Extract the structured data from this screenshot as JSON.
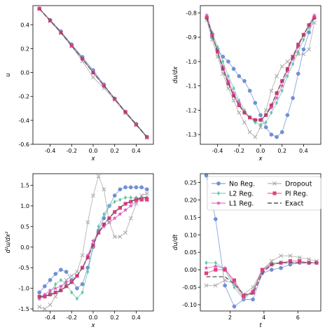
{
  "chart_data": [
    {
      "type": "line",
      "xlabel": "x",
      "ylabel": "u",
      "xlim": [
        -0.56,
        0.56
      ],
      "ylim": [
        -0.6,
        0.56
      ],
      "xticks": [
        "-0.4",
        "-0.2",
        "0.0",
        "0.2",
        "0.4"
      ],
      "xtick_values": [
        -0.4,
        -0.2,
        0.0,
        0.2,
        0.4
      ],
      "yticks": [
        "-0.6",
        "-0.4",
        "-0.2",
        "0.0",
        "0.2",
        "0.4"
      ],
      "ytick_values": [
        -0.6,
        -0.4,
        -0.2,
        0.0,
        0.2,
        0.4
      ],
      "x": [
        -0.5,
        -0.4,
        -0.3,
        -0.2,
        -0.1,
        0.0,
        0.1,
        0.2,
        0.3,
        0.4,
        0.5
      ],
      "series": [
        {
          "name": "No Reg.",
          "values": [
            0.535,
            0.44,
            0.345,
            0.235,
            0.13,
            0.02,
            -0.1,
            -0.22,
            -0.33,
            -0.43,
            -0.54
          ]
        },
        {
          "name": "L2 Reg.",
          "values": [
            0.535,
            0.435,
            0.34,
            0.23,
            0.12,
            0.005,
            -0.105,
            -0.215,
            -0.325,
            -0.43,
            -0.535
          ]
        },
        {
          "name": "L1 Reg.",
          "values": [
            0.535,
            0.435,
            0.335,
            0.225,
            0.115,
            0.0,
            -0.11,
            -0.22,
            -0.33,
            -0.435,
            -0.54
          ]
        },
        {
          "name": "Dropout",
          "values": [
            0.53,
            0.43,
            0.33,
            0.22,
            0.095,
            -0.04,
            -0.13,
            -0.23,
            -0.34,
            -0.44,
            -0.545
          ]
        },
        {
          "name": "PI Reg.",
          "values": [
            0.535,
            0.435,
            0.335,
            0.225,
            0.115,
            0.0,
            -0.11,
            -0.22,
            -0.33,
            -0.435,
            -0.54
          ]
        },
        {
          "name": "Exact",
          "values": [
            0.535,
            0.435,
            0.335,
            0.225,
            0.115,
            0.0,
            -0.11,
            -0.22,
            -0.33,
            -0.435,
            -0.54
          ]
        }
      ]
    },
    {
      "type": "line",
      "xlabel": "x",
      "ylabel": "du/dx",
      "xlim": [
        -0.56,
        0.56
      ],
      "ylim": [
        -1.34,
        -0.77
      ],
      "xticks": [
        "-0.4",
        "-0.2",
        "0.0",
        "0.2",
        "0.4"
      ],
      "xtick_values": [
        -0.4,
        -0.2,
        0.0,
        0.2,
        0.4
      ],
      "yticks": [
        "-1.3",
        "-1.2",
        "-1.1",
        "-1.0",
        "-0.9",
        "-0.8"
      ],
      "ytick_values": [
        -1.3,
        -1.2,
        -1.1,
        -1.0,
        -0.9,
        -0.8
      ],
      "x": [
        -0.5,
        -0.45,
        -0.4,
        -0.35,
        -0.3,
        -0.25,
        -0.2,
        -0.15,
        -0.1,
        -0.05,
        0.0,
        0.05,
        0.1,
        0.15,
        0.2,
        0.25,
        0.3,
        0.35,
        0.4,
        0.45,
        0.5
      ],
      "series": [
        {
          "name": "No Reg.",
          "values": [
            -0.82,
            -0.9,
            -0.95,
            -0.98,
            -1.0,
            -1.03,
            -1.06,
            -1.08,
            -1.12,
            -1.17,
            -1.22,
            -1.27,
            -1.3,
            -1.31,
            -1.29,
            -1.22,
            -1.15,
            -1.05,
            -0.95,
            -0.88,
            -0.82
          ]
        },
        {
          "name": "L2 Reg.",
          "values": [
            -0.81,
            -0.88,
            -0.94,
            -1.0,
            -1.06,
            -1.11,
            -1.16,
            -1.2,
            -1.23,
            -1.25,
            -1.26,
            -1.25,
            -1.21,
            -1.17,
            -1.12,
            -1.06,
            -1.01,
            -0.96,
            -0.91,
            -0.86,
            -0.82
          ]
        },
        {
          "name": "L1 Reg.",
          "values": [
            -0.81,
            -0.89,
            -0.96,
            -1.02,
            -1.08,
            -1.13,
            -1.17,
            -1.21,
            -1.23,
            -1.24,
            -1.24,
            -1.22,
            -1.19,
            -1.15,
            -1.1,
            -1.04,
            -0.99,
            -0.94,
            -0.89,
            -0.85,
            -0.81
          ]
        },
        {
          "name": "Dropout",
          "values": [
            -0.83,
            -0.91,
            -0.98,
            -1.05,
            -1.11,
            -1.16,
            -1.21,
            -1.25,
            -1.29,
            -1.31,
            -1.27,
            -1.2,
            -1.12,
            -1.06,
            -1.02,
            -1.0,
            -0.98,
            -0.97,
            -0.97,
            -0.95,
            -0.84
          ]
        },
        {
          "name": "PI Reg.",
          "values": [
            -0.82,
            -0.89,
            -0.96,
            -1.03,
            -1.09,
            -1.14,
            -1.18,
            -1.21,
            -1.23,
            -1.24,
            -1.24,
            -1.22,
            -1.18,
            -1.13,
            -1.08,
            -1.03,
            -0.98,
            -0.93,
            -0.89,
            -0.85,
            -0.82
          ]
        },
        {
          "name": "Exact",
          "values": [
            -0.82,
            -0.89,
            -0.96,
            -1.03,
            -1.09,
            -1.14,
            -1.18,
            -1.21,
            -1.23,
            -1.24,
            -1.24,
            -1.22,
            -1.18,
            -1.13,
            -1.08,
            -1.03,
            -0.98,
            -0.93,
            -0.89,
            -0.85,
            -0.82
          ]
        }
      ]
    },
    {
      "type": "line",
      "xlabel": "x",
      "ylabel": "d²u/dx²",
      "xlim": [
        -0.56,
        0.56
      ],
      "ylim": [
        -1.55,
        1.78
      ],
      "xticks": [
        "-0.4",
        "-0.2",
        "0.0",
        "0.2",
        "0.4"
      ],
      "xtick_values": [
        -0.4,
        -0.2,
        0.0,
        0.2,
        0.4
      ],
      "yticks": [
        "-1.5",
        "-1.0",
        "-0.5",
        "0.0",
        "0.5",
        "1.0",
        "1.5"
      ],
      "ytick_values": [
        -1.5,
        -1.0,
        -0.5,
        0.0,
        0.5,
        1.0,
        1.5
      ],
      "x": [
        -0.5,
        -0.45,
        -0.4,
        -0.35,
        -0.3,
        -0.25,
        -0.2,
        -0.15,
        -0.1,
        -0.05,
        0.0,
        0.05,
        0.1,
        0.15,
        0.2,
        0.25,
        0.3,
        0.35,
        0.4,
        0.45,
        0.5
      ],
      "series": [
        {
          "name": "No Reg.",
          "values": [
            -1.1,
            -0.95,
            -0.8,
            -0.65,
            -0.55,
            -0.6,
            -0.8,
            -1.0,
            -0.9,
            -0.5,
            0.0,
            0.4,
            0.7,
            1.0,
            1.25,
            1.4,
            1.45,
            1.45,
            1.45,
            1.45,
            1.4
          ]
        },
        {
          "name": "L2 Reg.",
          "values": [
            -1.25,
            -1.2,
            -1.1,
            -0.9,
            -0.8,
            -0.9,
            -1.1,
            -1.25,
            -1.1,
            -0.6,
            0.0,
            0.5,
            0.8,
            1.0,
            1.1,
            1.15,
            1.2,
            1.2,
            1.2,
            1.2,
            1.2
          ]
        },
        {
          "name": "L1 Reg.",
          "values": [
            -1.25,
            -1.15,
            -1.05,
            -1.0,
            -0.95,
            -0.85,
            -0.8,
            -0.7,
            -0.5,
            -0.2,
            0.15,
            0.35,
            0.5,
            0.6,
            0.7,
            0.8,
            0.9,
            1.0,
            1.1,
            1.2,
            1.2
          ]
        },
        {
          "name": "Dropout",
          "values": [
            -1.45,
            -1.5,
            -1.4,
            -1.2,
            -1.0,
            -0.8,
            -0.7,
            -0.6,
            -0.2,
            0.6,
            1.25,
            1.72,
            1.4,
            0.6,
            0.25,
            0.25,
            0.35,
            0.7,
            1.05,
            1.25,
            1.3
          ]
        },
        {
          "name": "PI Reg.",
          "values": [
            -1.2,
            -1.2,
            -1.15,
            -1.1,
            -1.05,
            -0.95,
            -0.85,
            -0.7,
            -0.5,
            -0.25,
            0.05,
            0.35,
            0.55,
            0.7,
            0.85,
            0.95,
            1.05,
            1.1,
            1.15,
            1.15,
            1.15
          ]
        },
        {
          "name": "Exact",
          "values": [
            -1.2,
            -1.19,
            -1.16,
            -1.11,
            -1.05,
            -0.96,
            -0.85,
            -0.7,
            -0.5,
            -0.25,
            0.05,
            0.35,
            0.55,
            0.71,
            0.85,
            0.96,
            1.05,
            1.11,
            1.16,
            1.19,
            1.2
          ]
        }
      ]
    },
    {
      "type": "line",
      "xlabel": "t",
      "ylabel": "du/dt",
      "xlim": [
        0.25,
        7.35
      ],
      "ylim": [
        -0.118,
        0.275
      ],
      "xticks": [
        "2",
        "4",
        "6"
      ],
      "xtick_values": [
        2,
        4,
        6
      ],
      "yticks": [
        "-0.10",
        "-0.05",
        "0.00",
        "0.05",
        "0.10",
        "0.15",
        "0.20",
        "0.25"
      ],
      "ytick_values": [
        -0.1,
        -0.05,
        0.0,
        0.05,
        0.1,
        0.15,
        0.2,
        0.25
      ],
      "x": [
        0.6,
        1.15,
        1.7,
        2.25,
        2.8,
        3.35,
        3.9,
        4.45,
        5.0,
        5.55,
        6.1,
        6.65,
        7.1
      ],
      "series": [
        {
          "name": "No Reg.",
          "values": [
            0.27,
            0.145,
            -0.045,
            -0.105,
            -0.085,
            -0.085,
            -0.01,
            0.0,
            0.005,
            0.015,
            0.02,
            0.02,
            0.02
          ]
        },
        {
          "name": "L2 Reg.",
          "values": [
            0.02,
            0.02,
            0.0,
            -0.05,
            -0.085,
            -0.06,
            -0.0,
            0.02,
            0.02,
            0.02,
            0.02,
            0.02,
            0.02
          ]
        },
        {
          "name": "L1 Reg.",
          "values": [
            0.005,
            0.01,
            0.005,
            -0.04,
            -0.08,
            -0.06,
            -0.005,
            0.015,
            0.02,
            0.02,
            0.02,
            0.02,
            0.02
          ]
        },
        {
          "name": "Dropout",
          "values": [
            -0.045,
            -0.045,
            -0.03,
            -0.04,
            -0.07,
            -0.05,
            -0.0,
            0.025,
            0.04,
            0.04,
            0.035,
            0.03,
            0.025
          ]
        },
        {
          "name": "PI Reg.",
          "values": [
            -0.01,
            -0.0,
            0.0,
            -0.03,
            -0.075,
            -0.065,
            0.0,
            0.015,
            0.02,
            0.025,
            0.025,
            0.02,
            0.02
          ]
        },
        {
          "name": "Exact",
          "values": [
            -0.02,
            -0.02,
            -0.02,
            -0.04,
            -0.07,
            -0.07,
            -0.01,
            0.015,
            0.02,
            0.02,
            0.02,
            0.02,
            0.02
          ]
        }
      ]
    }
  ],
  "series_styles": [
    {
      "name": "No Reg.",
      "color": "#6f8fd6",
      "marker": "circle"
    },
    {
      "name": "L2 Reg.",
      "color": "#64c5a3",
      "marker": "diamond"
    },
    {
      "name": "L1 Reg.",
      "color": "#d957c8",
      "marker": "star"
    },
    {
      "name": "Dropout",
      "color": "#a6a6a6",
      "marker": "x"
    },
    {
      "name": "PI Reg.",
      "color": "#e0407f",
      "marker": "square"
    },
    {
      "name": "Exact",
      "color": "#555555",
      "marker": "none",
      "dash": true
    }
  ],
  "legend": {
    "placement": "top-right of bottom-right panel",
    "entries": [
      "No Reg.",
      "Dropout",
      "L2 Reg.",
      "PI Reg.",
      "L1 Reg.",
      "Exact"
    ]
  }
}
